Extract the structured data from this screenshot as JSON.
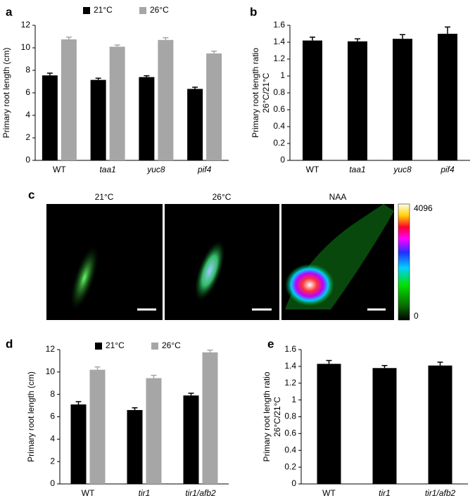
{
  "chart_data": [
    {
      "type": "bar",
      "panel": "a",
      "ylabel": [
        "Primary root length (cm)"
      ],
      "categories": [
        "WT",
        "taa1",
        "yuc8",
        "pif4"
      ],
      "category_italic": [
        false,
        true,
        true,
        true
      ],
      "series": [
        {
          "name": "21°C",
          "color": "#000000",
          "values": [
            7.55,
            7.15,
            7.4,
            6.35
          ],
          "errors": [
            0.2,
            0.15,
            0.12,
            0.15
          ]
        },
        {
          "name": "26°C",
          "color": "#a6a6a6",
          "values": [
            10.75,
            10.1,
            10.7,
            9.5
          ],
          "errors": [
            0.2,
            0.15,
            0.2,
            0.2
          ]
        }
      ],
      "ylim": [
        0,
        12
      ],
      "yticks": [
        0,
        2,
        4,
        6,
        8,
        10,
        12
      ]
    },
    {
      "type": "bar",
      "panel": "b",
      "ylabel": [
        "Primary root length ratio",
        "26°C/21°C"
      ],
      "categories": [
        "WT",
        "taa1",
        "yuc8",
        "pif4"
      ],
      "category_italic": [
        false,
        true,
        true,
        true
      ],
      "series": [
        {
          "color": "#000000",
          "values": [
            1.42,
            1.41,
            1.44,
            1.5
          ],
          "errors": [
            0.04,
            0.03,
            0.05,
            0.08
          ]
        }
      ],
      "ylim": [
        0,
        1.6
      ],
      "yticks": [
        0,
        0.2,
        0.4,
        0.6,
        0.8,
        1,
        1.2,
        1.4,
        1.6
      ]
    },
    {
      "type": "bar",
      "panel": "d",
      "ylabel": [
        "Primary root length (cm)"
      ],
      "categories": [
        "WT",
        "tir1",
        "tir1/afb2"
      ],
      "category_italic": [
        false,
        true,
        true
      ],
      "series": [
        {
          "name": "21°C",
          "color": "#000000",
          "values": [
            7.1,
            6.6,
            7.9
          ],
          "errors": [
            0.25,
            0.2,
            0.2
          ]
        },
        {
          "name": "26°C",
          "color": "#a6a6a6",
          "values": [
            10.2,
            9.45,
            11.75
          ],
          "errors": [
            0.25,
            0.25,
            0.2
          ]
        }
      ],
      "ylim": [
        0,
        12
      ],
      "yticks": [
        0,
        2,
        4,
        6,
        8,
        10,
        12
      ]
    },
    {
      "type": "bar",
      "panel": "e",
      "ylabel": [
        "Primary root length ratio",
        "26°C/21°C"
      ],
      "categories": [
        "WT",
        "tir1",
        "tir1/afb2"
      ],
      "category_italic": [
        false,
        true,
        true
      ],
      "series": [
        {
          "color": "#000000",
          "values": [
            1.43,
            1.38,
            1.41
          ],
          "errors": [
            0.04,
            0.03,
            0.04
          ]
        }
      ],
      "ylim": [
        0,
        1.6
      ],
      "yticks": [
        0,
        0.2,
        0.4,
        0.6,
        0.8,
        1,
        1.2,
        1.4,
        1.6
      ]
    }
  ],
  "image_panel": {
    "panel": "c",
    "labels": [
      "21°C",
      "26°C",
      "NAA"
    ],
    "colorbar_max": "4096",
    "colorbar_min": "0"
  }
}
